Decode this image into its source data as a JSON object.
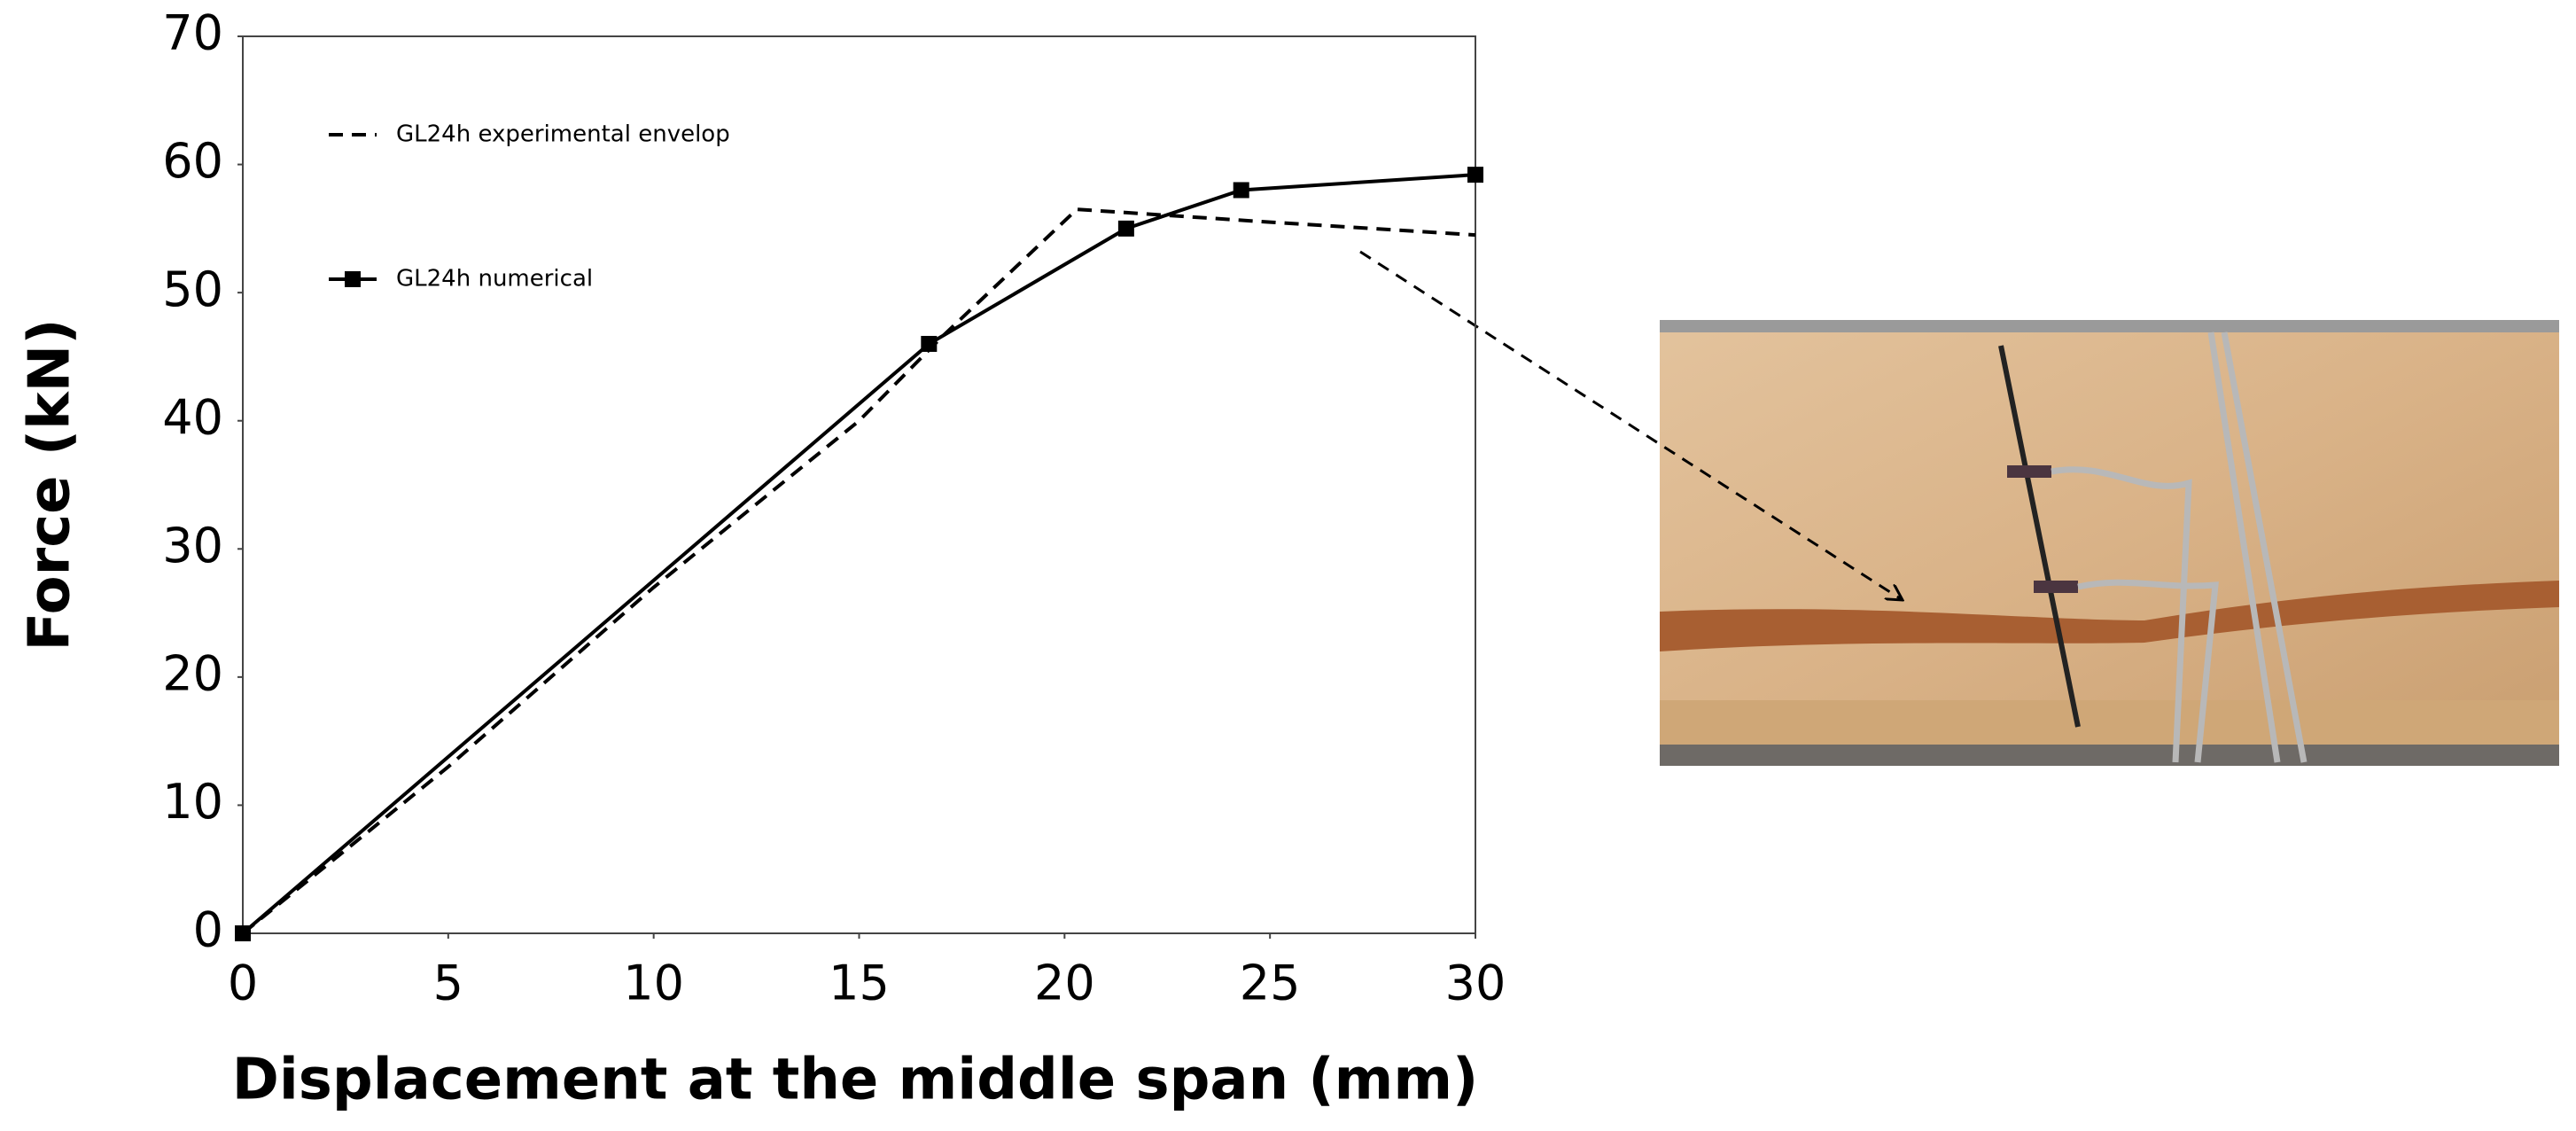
{
  "chart_data": {
    "type": "line",
    "x_label": "Displacement at the middle span (mm)",
    "y_label": "Force (kN)",
    "xlim": [
      0,
      30
    ],
    "xticks": [
      0,
      5,
      10,
      15,
      20,
      25,
      30
    ],
    "ylim": [
      0,
      70
    ],
    "yticks": [
      0,
      10,
      20,
      30,
      40,
      50,
      60,
      70
    ],
    "grid": false,
    "legend": "upper left",
    "series": [
      {
        "name": "GL24h experimental envelop",
        "color": "#000000",
        "dash": true,
        "marker": false,
        "x": [
          0,
          5,
          10,
          15,
          17,
          20.3,
          25,
          30
        ],
        "values": [
          0,
          13,
          27,
          40,
          46.5,
          56.5,
          55.5,
          54.5
        ]
      },
      {
        "name": "GL24h numerical",
        "color": "#000000",
        "dash": false,
        "marker": true,
        "x": [
          0,
          16.7,
          21.5,
          24.3,
          30
        ],
        "values": [
          0,
          46,
          55,
          58,
          59.2
        ]
      }
    ]
  }
}
